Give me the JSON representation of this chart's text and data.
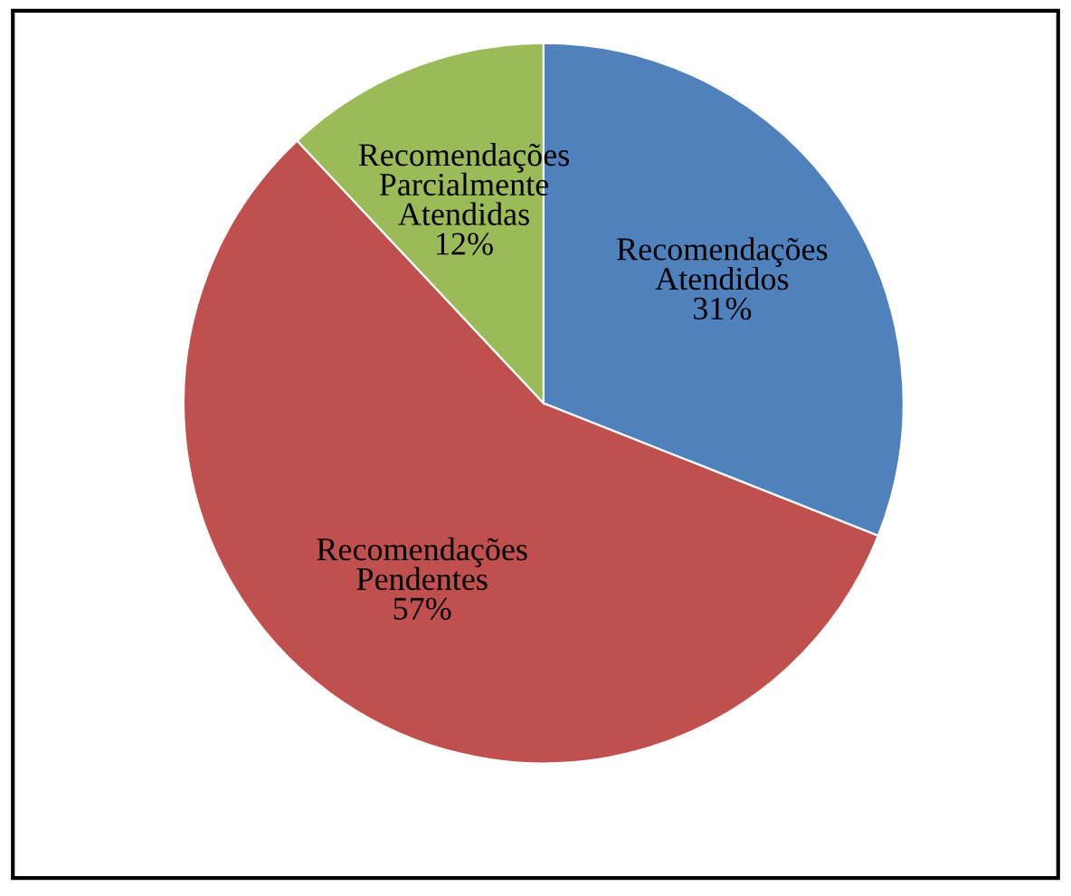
{
  "chart_data": {
    "type": "pie",
    "categories": [
      "Recomendações Atendidos",
      "Recomendações Pendentes",
      "Recomendações Parcialmente Atendidas"
    ],
    "values": [
      31,
      57,
      12
    ],
    "value_labels": [
      "31%",
      "57%",
      "12%"
    ],
    "colors": [
      "#4f81bd",
      "#c0504d",
      "#9bbb59"
    ],
    "legend": false
  }
}
